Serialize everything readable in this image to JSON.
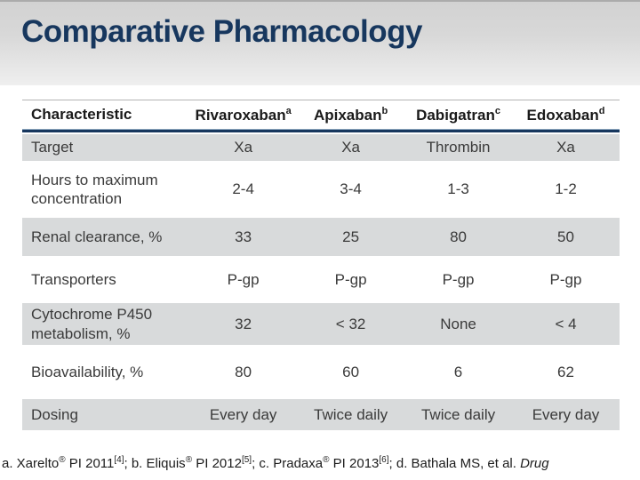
{
  "title": "Comparative Pharmacology",
  "colors": {
    "accent_navy": "#17375E",
    "shaded_row": "#d8dadb",
    "title_band_top": "#d2d2d2",
    "title_band_bottom": "#efefef"
  },
  "table": {
    "columns": [
      {
        "label": "Characteristic",
        "sup": ""
      },
      {
        "label": "Rivaroxaban",
        "sup": "a"
      },
      {
        "label": "Apixaban",
        "sup": "b"
      },
      {
        "label": "Dabigatran",
        "sup": "c"
      },
      {
        "label": "Edoxaban",
        "sup": "d"
      }
    ],
    "rows": [
      {
        "label": "Target",
        "values": [
          "Xa",
          "Xa",
          "Thrombin",
          "Xa"
        ],
        "shaded": true
      },
      {
        "label": "Hours to maximum concentration",
        "values": [
          "2-4",
          "3-4",
          "1-3",
          "1-2"
        ],
        "shaded": false
      },
      {
        "label": "Renal clearance, %",
        "values": [
          "33",
          "25",
          "80",
          "50"
        ],
        "shaded": true
      },
      {
        "label": "Transporters",
        "values": [
          "P-gp",
          "P-gp",
          "P-gp",
          "P-gp"
        ],
        "shaded": false
      },
      {
        "label": "Cytochrome P450 metabolism, %",
        "values": [
          "32",
          "< 32",
          "None",
          "< 4"
        ],
        "shaded": true
      },
      {
        "label": "Bioavailability, %",
        "values": [
          "80",
          "60",
          "6",
          "62"
        ],
        "shaded": false
      },
      {
        "label": "Dosing",
        "values": [
          "Every day",
          "Twice daily",
          "Twice daily",
          "Every day"
        ],
        "shaded": true
      }
    ]
  },
  "footer": {
    "segments": [
      {
        "text": "a. Xarelto"
      },
      {
        "text": "®",
        "sup": true
      },
      {
        "text": " PI 2011"
      },
      {
        "text": "[4]",
        "sup": true
      },
      {
        "text": "; b. Eliquis"
      },
      {
        "text": "®",
        "sup": true
      },
      {
        "text": " PI 2012"
      },
      {
        "text": "[5]",
        "sup": true
      },
      {
        "text": "; c. Pradaxa"
      },
      {
        "text": "®",
        "sup": true
      },
      {
        "text": " PI 2013"
      },
      {
        "text": "[6]",
        "sup": true
      },
      {
        "text": "; d. Bathala MS, et al. "
      },
      {
        "text": "Drug",
        "italic": true
      }
    ]
  }
}
